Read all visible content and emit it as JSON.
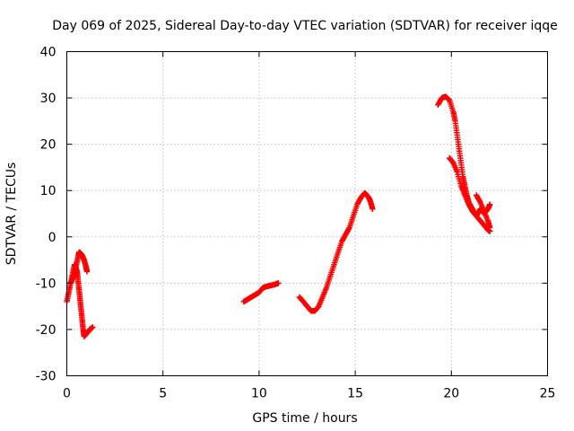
{
  "chart_data": {
    "type": "scatter",
    "title": "Day 069 of 2025, Sidereal Day-to-day VTEC variation (SDTVAR) for receiver iqqe",
    "xlabel": "GPS time / hours",
    "ylabel": "SDTVAR / TECUs",
    "xlim": [
      0,
      25
    ],
    "ylim": [
      -30,
      40
    ],
    "xticks": [
      0,
      5,
      10,
      15,
      20,
      25
    ],
    "yticks": [
      -30,
      -20,
      -10,
      0,
      10,
      20,
      30,
      40
    ],
    "grid": true,
    "marker": "plus",
    "color": "#ff0000",
    "series": [
      {
        "name": "seg1a",
        "points": [
          [
            0.0,
            -14
          ],
          [
            0.1,
            -12
          ],
          [
            0.2,
            -10
          ],
          [
            0.3,
            -9
          ],
          [
            0.4,
            -8
          ],
          [
            0.5,
            -6
          ],
          [
            0.6,
            -4
          ],
          [
            0.65,
            -3.3
          ],
          [
            0.7,
            -3.5
          ],
          [
            0.8,
            -4
          ],
          [
            0.9,
            -5
          ],
          [
            1.0,
            -6.5
          ],
          [
            1.05,
            -7.5
          ]
        ]
      },
      {
        "name": "seg1b",
        "points": [
          [
            0.2,
            -10
          ],
          [
            0.3,
            -8
          ],
          [
            0.4,
            -6
          ],
          [
            0.5,
            -7
          ],
          [
            0.55,
            -8
          ],
          [
            0.6,
            -10
          ],
          [
            0.65,
            -12
          ],
          [
            0.7,
            -14
          ],
          [
            0.75,
            -16
          ],
          [
            0.8,
            -18
          ],
          [
            0.85,
            -20
          ],
          [
            0.9,
            -21.5
          ],
          [
            1.0,
            -21
          ],
          [
            1.1,
            -20.5
          ],
          [
            1.2,
            -20
          ],
          [
            1.35,
            -19.5
          ]
        ]
      },
      {
        "name": "seg2",
        "points": [
          [
            9.2,
            -14
          ],
          [
            9.4,
            -13.5
          ],
          [
            9.6,
            -13
          ],
          [
            9.8,
            -12.5
          ],
          [
            10.0,
            -12
          ],
          [
            10.2,
            -11
          ],
          [
            10.4,
            -10.7
          ],
          [
            10.6,
            -10.5
          ],
          [
            10.8,
            -10.3
          ],
          [
            11.0,
            -10
          ]
        ]
      },
      {
        "name": "seg3",
        "points": [
          [
            12.1,
            -13
          ],
          [
            12.3,
            -14
          ],
          [
            12.5,
            -15
          ],
          [
            12.7,
            -16
          ],
          [
            12.9,
            -16
          ],
          [
            13.1,
            -15
          ],
          [
            13.3,
            -13
          ],
          [
            13.5,
            -11
          ],
          [
            13.7,
            -8.5
          ],
          [
            13.9,
            -6
          ],
          [
            14.1,
            -3.5
          ],
          [
            14.3,
            -1
          ],
          [
            14.5,
            0.5
          ],
          [
            14.7,
            2
          ],
          [
            14.9,
            4.5
          ],
          [
            15.1,
            7
          ],
          [
            15.3,
            8.5
          ],
          [
            15.5,
            9.5
          ],
          [
            15.7,
            8.5
          ],
          [
            15.8,
            7.5
          ],
          [
            15.9,
            6
          ]
        ]
      },
      {
        "name": "seg4a",
        "points": [
          [
            19.3,
            28.5
          ],
          [
            19.5,
            30
          ],
          [
            19.7,
            30.3
          ],
          [
            19.9,
            29.5
          ],
          [
            20.1,
            27
          ],
          [
            20.2,
            25
          ],
          [
            20.3,
            22
          ],
          [
            20.4,
            19
          ],
          [
            20.5,
            16
          ],
          [
            20.6,
            13
          ],
          [
            20.7,
            11
          ],
          [
            20.8,
            9
          ],
          [
            20.9,
            7.5
          ],
          [
            21.1,
            6
          ],
          [
            21.3,
            4.5
          ],
          [
            21.5,
            3.5
          ],
          [
            21.7,
            2.5
          ],
          [
            21.9,
            1.5
          ],
          [
            22.0,
            1.2
          ]
        ]
      },
      {
        "name": "seg4b",
        "points": [
          [
            19.9,
            17
          ],
          [
            20.1,
            16
          ],
          [
            20.3,
            14
          ],
          [
            20.5,
            11
          ],
          [
            20.7,
            9
          ],
          [
            20.9,
            7
          ],
          [
            21.1,
            5.5
          ],
          [
            21.3,
            4.5
          ],
          [
            21.5,
            6
          ],
          [
            21.7,
            5
          ],
          [
            21.9,
            6
          ],
          [
            22.0,
            7
          ]
        ]
      },
      {
        "name": "seg4c",
        "points": [
          [
            21.3,
            9
          ],
          [
            21.5,
            7.5
          ],
          [
            21.7,
            5.5
          ],
          [
            21.9,
            3.5
          ],
          [
            22.0,
            2
          ]
        ]
      }
    ]
  }
}
